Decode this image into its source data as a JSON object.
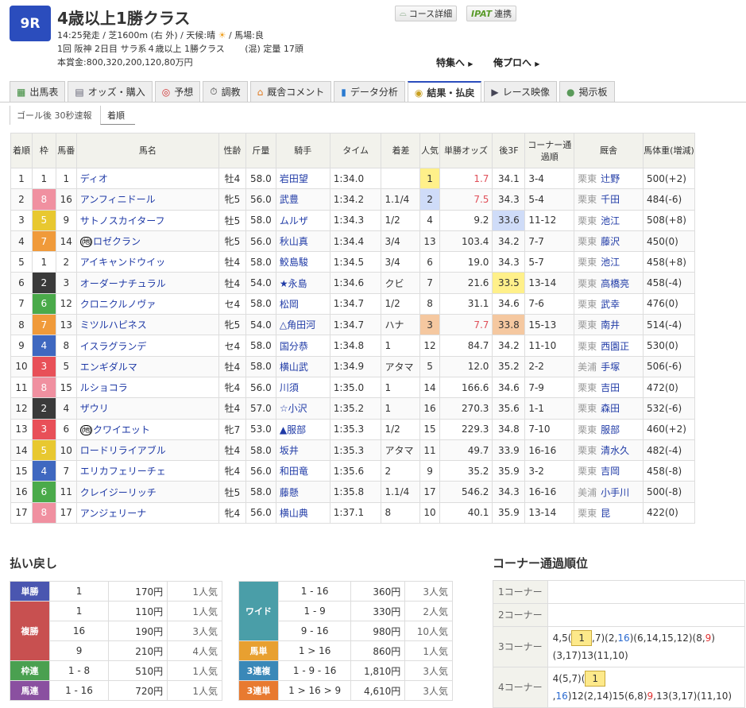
{
  "race": {
    "number": "9R",
    "title": "4歳以上1勝クラス",
    "line1a": "14:25発走 / 芝1600m (右 外) / 天候:晴",
    "line1b": "/ 馬場:良",
    "line2": "1回 阪神 2日目 サラ系４歳以上 1勝クラス　　 (混) 定量 17頭",
    "line3": "本賞金:800,320,200,120,80万円",
    "weather_icon": "sun-icon"
  },
  "buttons": {
    "course": "コース詳細",
    "ipat_logo": "IPAT",
    "ipat": "連携"
  },
  "links": {
    "special": "特集へ",
    "blog": "俺プロへ"
  },
  "tabs": [
    {
      "label": "出馬表"
    },
    {
      "label": "オッズ・購入"
    },
    {
      "label": "予想"
    },
    {
      "label": "調教"
    },
    {
      "label": "厩舎コメント"
    },
    {
      "label": "データ分析"
    },
    {
      "label": "結果・払戻",
      "active": true
    },
    {
      "label": "レース映像"
    },
    {
      "label": "掲示板"
    }
  ],
  "subtabs": [
    {
      "label": "ゴール後 30秒速報"
    },
    {
      "label": "着順",
      "active": true
    }
  ],
  "colors": {
    "waku": {
      "1": "#ffffff",
      "2": "#3a3a3a",
      "3": "#e85058",
      "4": "#3f68c0",
      "5": "#e8c830",
      "6": "#4aaa4a",
      "7": "#f09a3a",
      "8": "#f090a0"
    },
    "pop1": "#fff08a",
    "pop2": "#cfdcf8",
    "pop3": "#f5c8a0",
    "odds_top": "#e0505a"
  },
  "table": {
    "headers": [
      "着順",
      "枠",
      "馬番",
      "馬名",
      "性齢",
      "斤量",
      "騎手",
      "タイム",
      "着差",
      "人気",
      "単勝オッズ",
      "後3F",
      "コーナー通過順",
      "厩舎",
      "馬体重(増減)"
    ],
    "rows": [
      [
        "1",
        "1",
        "1",
        "ディオ",
        "牡4",
        "58.0",
        "岩田望",
        "1:34.0",
        "",
        "1",
        "1.7",
        "34.1",
        "3-4",
        "栗東",
        "辻野",
        "500(+2)"
      ],
      [
        "2",
        "8",
        "16",
        "アンフィニドール",
        "牝5",
        "56.0",
        "武豊",
        "1:34.2",
        "1.1/4",
        "2",
        "7.5",
        "34.3",
        "5-4",
        "栗東",
        "千田",
        "484(-6)"
      ],
      [
        "3",
        "5",
        "9",
        "サトノスカイターフ",
        "牡5",
        "58.0",
        "ムルザ",
        "1:34.3",
        "1/2",
        "4",
        "9.2",
        "33.6",
        "11-12",
        "栗東",
        "池江",
        "508(+8)"
      ],
      [
        "4",
        "7",
        "14",
        "ロゼクラン",
        "牝5",
        "56.0",
        "秋山真",
        "1:34.4",
        "3/4",
        "13",
        "103.4",
        "34.2",
        "7-7",
        "栗東",
        "藤沢",
        "450(0)"
      ],
      [
        "5",
        "1",
        "2",
        "アイキャンドウイッ",
        "牡4",
        "58.0",
        "鮫島駿",
        "1:34.5",
        "3/4",
        "6",
        "19.0",
        "34.3",
        "5-7",
        "栗東",
        "池江",
        "458(+8)"
      ],
      [
        "6",
        "2",
        "3",
        "オーダーナチュラル",
        "牡4",
        "54.0",
        "★永島",
        "1:34.6",
        "クビ",
        "7",
        "21.6",
        "33.5",
        "13-14",
        "栗東",
        "高橋亮",
        "458(-4)"
      ],
      [
        "7",
        "6",
        "12",
        "クロニクルノヴァ",
        "セ4",
        "58.0",
        "松岡",
        "1:34.7",
        "1/2",
        "8",
        "31.1",
        "34.6",
        "7-6",
        "栗東",
        "武幸",
        "476(0)"
      ],
      [
        "8",
        "7",
        "13",
        "ミツルハピネス",
        "牝5",
        "54.0",
        "△角田河",
        "1:34.7",
        "ハナ",
        "3",
        "7.7",
        "33.8",
        "15-13",
        "栗東",
        "南井",
        "514(-4)"
      ],
      [
        "9",
        "4",
        "8",
        "イスラグランデ",
        "セ4",
        "58.0",
        "国分恭",
        "1:34.8",
        "1",
        "12",
        "84.7",
        "34.2",
        "11-10",
        "栗東",
        "西園正",
        "530(0)"
      ],
      [
        "10",
        "3",
        "5",
        "エンギダルマ",
        "牡4",
        "58.0",
        "横山武",
        "1:34.9",
        "アタマ",
        "5",
        "12.0",
        "35.2",
        "2-2",
        "美浦",
        "手塚",
        "506(-6)"
      ],
      [
        "11",
        "8",
        "15",
        "ルショコラ",
        "牝4",
        "56.0",
        "川須",
        "1:35.0",
        "1",
        "14",
        "166.6",
        "34.6",
        "7-9",
        "栗東",
        "吉田",
        "472(0)"
      ],
      [
        "12",
        "2",
        "4",
        "ザウリ",
        "牡4",
        "57.0",
        "☆小沢",
        "1:35.2",
        "1",
        "16",
        "270.3",
        "35.6",
        "1-1",
        "栗東",
        "森田",
        "532(-6)"
      ],
      [
        "13",
        "3",
        "6",
        "クワイエット",
        "牝7",
        "53.0",
        "▲服部",
        "1:35.3",
        "1/2",
        "15",
        "229.3",
        "34.8",
        "7-10",
        "栗東",
        "服部",
        "460(+2)"
      ],
      [
        "14",
        "5",
        "10",
        "ロードリライアブル",
        "牡4",
        "58.0",
        "坂井",
        "1:35.3",
        "アタマ",
        "11",
        "49.7",
        "33.9",
        "16-16",
        "栗東",
        "清水久",
        "482(-4)"
      ],
      [
        "15",
        "4",
        "7",
        "エリカフェリーチェ",
        "牝4",
        "56.0",
        "和田竜",
        "1:35.6",
        "2",
        "9",
        "35.2",
        "35.9",
        "3-2",
        "栗東",
        "吉岡",
        "458(-8)"
      ],
      [
        "16",
        "6",
        "11",
        "クレイジーリッチ",
        "牡5",
        "58.0",
        "藤懸",
        "1:35.8",
        "1.1/4",
        "17",
        "546.2",
        "34.3",
        "16-16",
        "美浦",
        "小手川",
        "500(-8)"
      ],
      [
        "17",
        "8",
        "17",
        "アンジェリーナ",
        "牝4",
        "56.0",
        "横山典",
        "1:37.1",
        "8",
        "10",
        "40.1",
        "35.9",
        "13-14",
        "栗東",
        "昆",
        "422(0)"
      ]
    ],
    "marks": {
      "4": "(地)",
      "13": "(地)"
    },
    "mark_glyph": "㊞"
  },
  "payout": {
    "title": "払い戻し",
    "left": [
      {
        "type": "単勝",
        "color": "#4a56b0",
        "rows": [
          [
            "1",
            "170円",
            "1人気"
          ]
        ]
      },
      {
        "type": "複勝",
        "color": "#c85050",
        "rows": [
          [
            "1",
            "110円",
            "1人気"
          ],
          [
            "16",
            "190円",
            "3人気"
          ],
          [
            "9",
            "210円",
            "4人気"
          ]
        ]
      },
      {
        "type": "枠連",
        "color": "#4aa050",
        "rows": [
          [
            "1 - 8",
            "510円",
            "1人気"
          ]
        ]
      },
      {
        "type": "馬連",
        "color": "#8a50a0",
        "rows": [
          [
            "1 - 16",
            "720円",
            "1人気"
          ]
        ]
      }
    ],
    "right": [
      {
        "type": "ワイド",
        "color": "#4a9ea8",
        "rows": [
          [
            "1 - 16",
            "360円",
            "3人気"
          ],
          [
            "1 - 9",
            "330円",
            "2人気"
          ],
          [
            "9 - 16",
            "980円",
            "10人気"
          ]
        ]
      },
      {
        "type": "馬単",
        "color": "#e8a030",
        "rows": [
          [
            "1 > 16",
            "860円",
            "1人気"
          ]
        ]
      },
      {
        "type": "3連複",
        "color": "#3a88b8",
        "rows": [
          [
            "1 - 9 - 16",
            "1,810円",
            "3人気"
          ]
        ]
      },
      {
        "type": "3連単",
        "color": "#e87a30",
        "rows": [
          [
            "1 > 16 > 9",
            "4,610円",
            "3人気"
          ]
        ]
      }
    ]
  },
  "corner": {
    "title": "コーナー通過順位",
    "rows": [
      {
        "label": "1コーナー",
        "segments": []
      },
      {
        "label": "2コーナー",
        "segments": []
      },
      {
        "label": "3コーナー",
        "segments": [
          {
            "t": "4,5("
          },
          {
            "t": "1",
            "hl": true
          },
          {
            "t": ",7)(2,"
          },
          {
            "t": "16",
            "c": "blue"
          },
          {
            "t": ")(6,14,15,12)(8,"
          },
          {
            "t": "9",
            "c": "red"
          },
          {
            "t": ")(3,17)13(11,10)"
          }
        ]
      },
      {
        "label": "4コーナー",
        "segments": [
          {
            "t": "4(5,7)("
          },
          {
            "t": "1",
            "hl": true
          },
          {
            "t": ","
          },
          {
            "t": "16",
            "c": "blue"
          },
          {
            "t": ")12(2,14)15(6,8)"
          },
          {
            "t": "9",
            "c": "red"
          },
          {
            "t": ",13(3,17)(11,10)"
          }
        ]
      }
    ]
  }
}
